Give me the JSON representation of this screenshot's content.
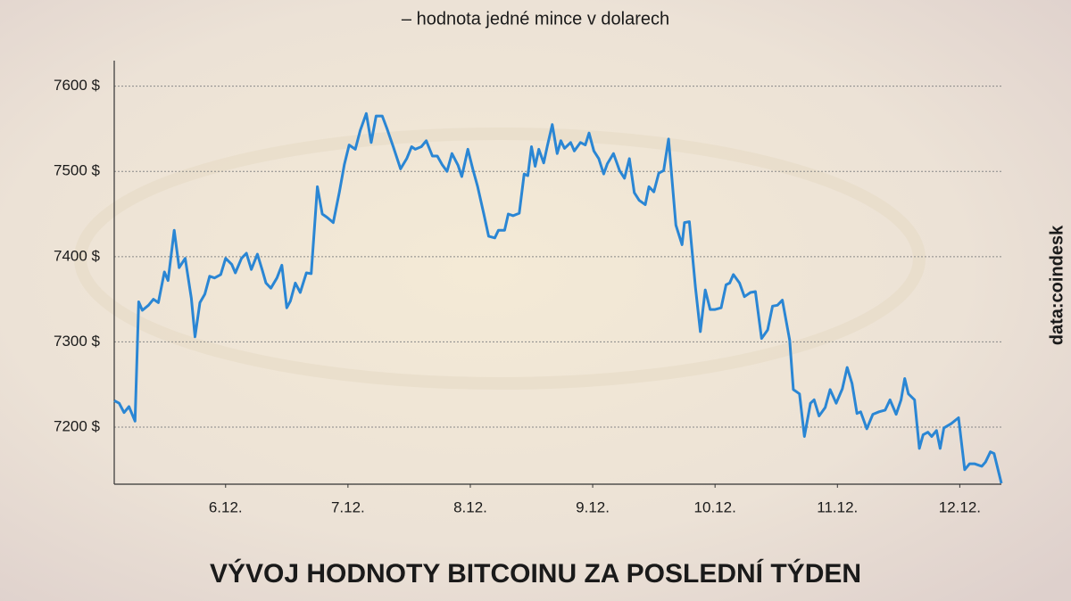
{
  "chart_data": {
    "type": "line",
    "title": "VÝVOJ HODNOTY BITCOINU ZA POSLEDNÍ TÝDEN",
    "subtitle": "– hodnota jedné mince v dolarech",
    "source": "data:coindesk",
    "xlim": [
      5.09,
      12.34
    ],
    "xticks": [
      {
        "value": 6,
        "label": "6.12."
      },
      {
        "value": 7,
        "label": "7.12."
      },
      {
        "value": 8,
        "label": "8.12."
      },
      {
        "value": 9,
        "label": "9.12."
      },
      {
        "value": 10,
        "label": "10.12."
      },
      {
        "value": 11,
        "label": "11.12."
      },
      {
        "value": 12,
        "label": "12.12."
      }
    ],
    "ylim": [
      7133,
      7630
    ],
    "yticks": [
      {
        "value": 7200,
        "label": "7200 $"
      },
      {
        "value": 7300,
        "label": "7300 $"
      },
      {
        "value": 7400,
        "label": "7400 $"
      },
      {
        "value": 7500,
        "label": "7500 $"
      },
      {
        "value": 7600,
        "label": "7600 $"
      }
    ],
    "grid": true,
    "color": "#2a86d4",
    "x": [
      5.09,
      5.13,
      5.17,
      5.21,
      5.26,
      5.29,
      5.32,
      5.37,
      5.41,
      5.45,
      5.5,
      5.53,
      5.58,
      5.62,
      5.67,
      5.72,
      5.75,
      5.79,
      5.83,
      5.87,
      5.91,
      5.96,
      6.0,
      6.05,
      6.08,
      6.13,
      6.17,
      6.21,
      6.26,
      6.3,
      6.33,
      6.37,
      6.42,
      6.46,
      6.5,
      6.53,
      6.57,
      6.61,
      6.66,
      6.7,
      6.75,
      6.79,
      6.83,
      6.88,
      6.93,
      6.97,
      7.01,
      7.06,
      7.1,
      7.15,
      7.19,
      7.23,
      7.28,
      7.32,
      7.37,
      7.43,
      7.48,
      7.52,
      7.55,
      7.6,
      7.64,
      7.69,
      7.73,
      7.77,
      7.81,
      7.85,
      7.9,
      7.93,
      7.98,
      8.02,
      8.06,
      8.11,
      8.15,
      8.2,
      8.23,
      8.28,
      8.31,
      8.35,
      8.4,
      8.44,
      8.47,
      8.5,
      8.53,
      8.56,
      8.6,
      8.63,
      8.67,
      8.71,
      8.74,
      8.77,
      8.82,
      8.85,
      8.9,
      8.94,
      8.97,
      9.01,
      9.05,
      9.09,
      9.12,
      9.17,
      9.22,
      9.26,
      9.3,
      9.34,
      9.38,
      9.43,
      9.46,
      9.5,
      9.54,
      9.58,
      9.62,
      9.68,
      9.73,
      9.75,
      9.79,
      9.84,
      9.88,
      9.92,
      9.96,
      10.0,
      10.05,
      10.09,
      10.12,
      10.15,
      10.2,
      10.24,
      10.29,
      10.33,
      10.38,
      10.43,
      10.47,
      10.51,
      10.55,
      10.61,
      10.64,
      10.69,
      10.73,
      10.78,
      10.81,
      10.85,
      10.9,
      10.94,
      10.99,
      11.04,
      11.08,
      11.12,
      11.16,
      11.19,
      11.24,
      11.29,
      11.34,
      11.39,
      11.43,
      11.48,
      11.52,
      11.55,
      11.58,
      11.63,
      11.67,
      11.7,
      11.74,
      11.77,
      11.81,
      11.84,
      11.87,
      11.93,
      11.99,
      12.04,
      12.08,
      12.12,
      12.18,
      12.21,
      12.25,
      12.28,
      12.34
    ],
    "values": [
      7231,
      7228,
      7217,
      7224,
      7207,
      7347,
      7337,
      7343,
      7350,
      7346,
      7382,
      7372,
      7431,
      7387,
      7398,
      7351,
      7306,
      7346,
      7356,
      7377,
      7375,
      7379,
      7398,
      7391,
      7381,
      7398,
      7404,
      7385,
      7403,
      7384,
      7369,
      7363,
      7375,
      7390,
      7340,
      7348,
      7369,
      7358,
      7381,
      7380,
      7482,
      7450,
      7446,
      7440,
      7476,
      7508,
      7531,
      7526,
      7548,
      7568,
      7534,
      7565,
      7565,
      7550,
      7529,
      7503,
      7515,
      7529,
      7526,
      7529,
      7536,
      7518,
      7518,
      7508,
      7500,
      7521,
      7507,
      7494,
      7526,
      7503,
      7482,
      7450,
      7424,
      7422,
      7431,
      7431,
      7450,
      7448,
      7451,
      7497,
      7495,
      7529,
      7506,
      7526,
      7510,
      7530,
      7555,
      7521,
      7536,
      7527,
      7534,
      7524,
      7534,
      7531,
      7545,
      7524,
      7515,
      7497,
      7509,
      7521,
      7501,
      7492,
      7515,
      7475,
      7466,
      7461,
      7482,
      7476,
      7498,
      7501,
      7538,
      7437,
      7414,
      7440,
      7441,
      7364,
      7312,
      7361,
      7338,
      7338,
      7340,
      7367,
      7369,
      7379,
      7369,
      7353,
      7358,
      7359,
      7304,
      7314,
      7342,
      7343,
      7349,
      7302,
      7244,
      7239,
      7189,
      7228,
      7232,
      7213,
      7223,
      7244,
      7228,
      7245,
      7270,
      7251,
      7216,
      7218,
      7198,
      7215,
      7218,
      7220,
      7232,
      7215,
      7232,
      7257,
      7239,
      7232,
      7175,
      7191,
      7194,
      7189,
      7196,
      7175,
      7199,
      7204,
      7211,
      7150,
      7157,
      7157,
      7154,
      7159,
      7171,
      7169,
      7134
    ]
  }
}
